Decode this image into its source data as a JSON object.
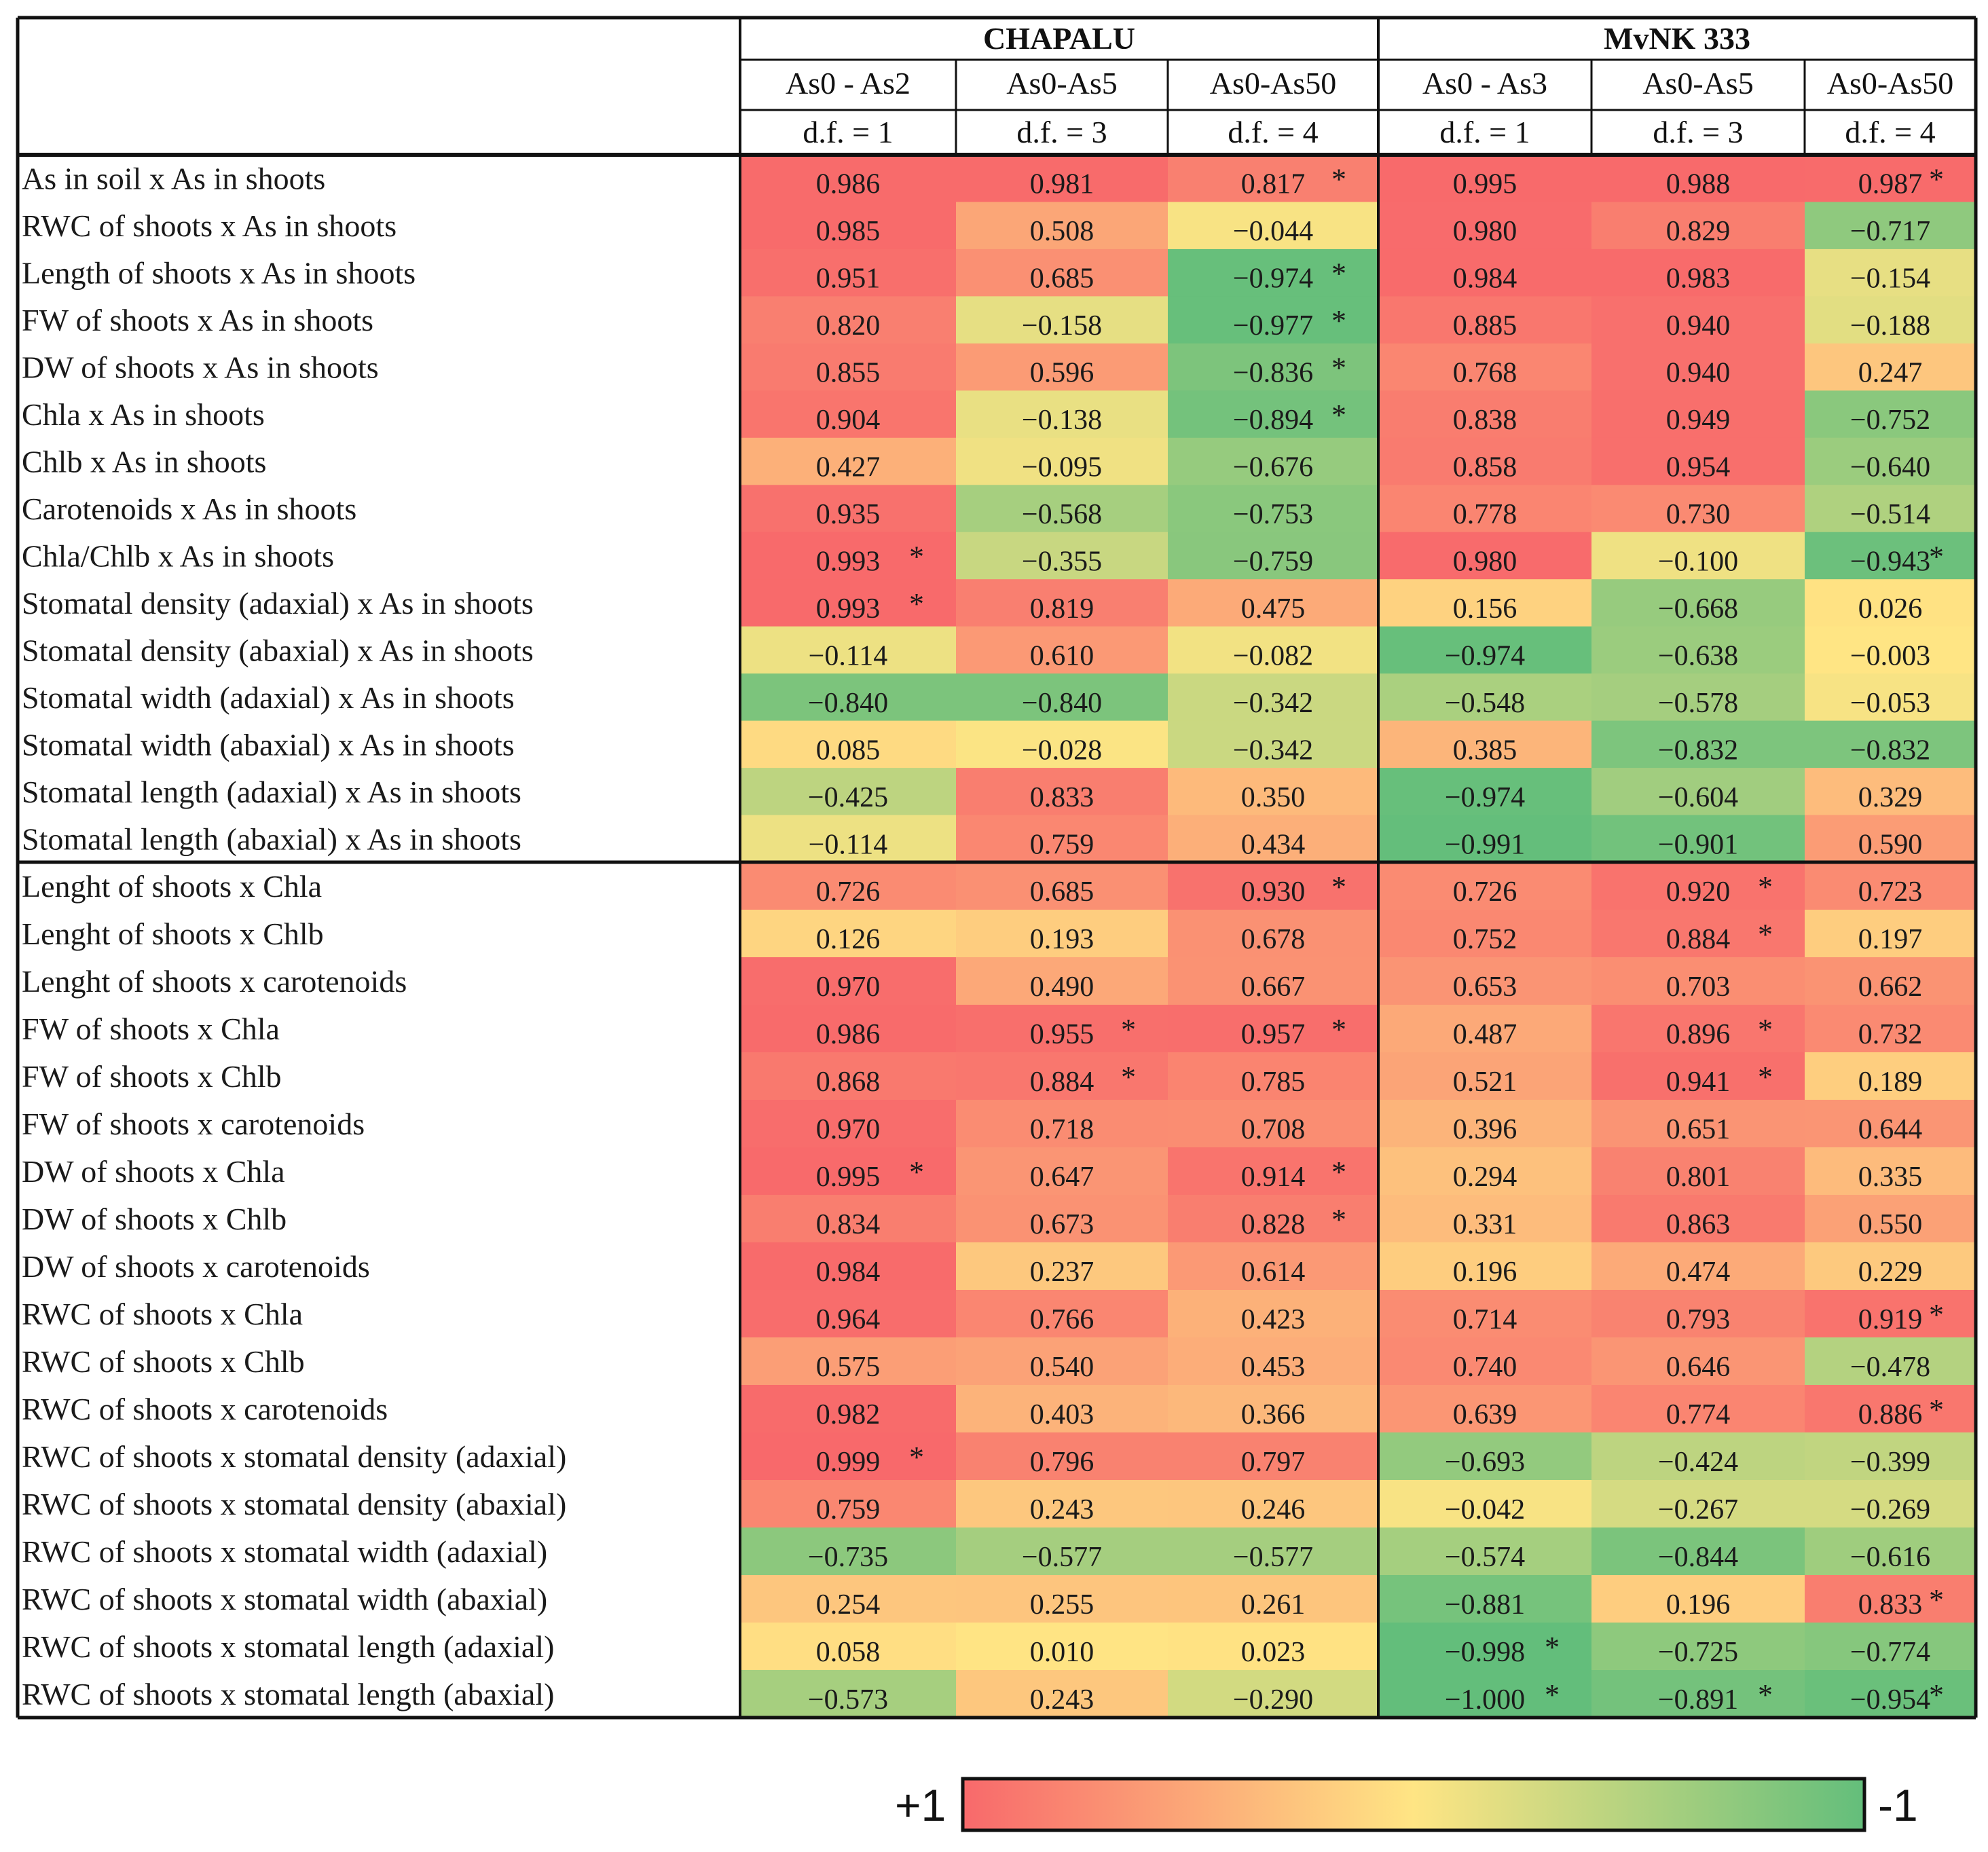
{
  "chart_data": {
    "type": "heatmap",
    "colorscale": {
      "high_color": "#f8696b",
      "mid_color": "#ffe584",
      "low_color": "#63be7b",
      "min": -1,
      "max": 1
    },
    "groups": [
      {
        "name": "CHAPALU",
        "columns": [
          {
            "label": "As0 - As2",
            "df": "d.f. = 1"
          },
          {
            "label": "As0-As5",
            "df": "d.f. = 3"
          },
          {
            "label": "As0-As50",
            "df": "d.f. = 4"
          }
        ]
      },
      {
        "name": "MvNK 333",
        "columns": [
          {
            "label": "As0 - As3",
            "df": "d.f. = 1"
          },
          {
            "label": "As0-As5",
            "df": "d.f. = 3"
          },
          {
            "label": "As0-As50",
            "df": "d.f. = 4"
          }
        ]
      }
    ],
    "significance_marker": "*",
    "sections": [
      {
        "rows": [
          {
            "label": "As in soil x As in shoots",
            "values": [
              0.986,
              0.981,
              0.817,
              0.995,
              0.988,
              0.987
            ],
            "sig": [
              0,
              0,
              1,
              0,
              0,
              1
            ]
          },
          {
            "label": "RWC of shoots x As in shoots",
            "values": [
              0.985,
              0.508,
              -0.044,
              0.98,
              0.829,
              -0.717
            ],
            "sig": [
              0,
              0,
              0,
              0,
              0,
              0
            ]
          },
          {
            "label": "Length of shoots x As in shoots",
            "values": [
              0.951,
              0.685,
              -0.974,
              0.984,
              0.983,
              -0.154
            ],
            "sig": [
              0,
              0,
              1,
              0,
              0,
              0
            ]
          },
          {
            "label": "FW of shoots x As in shoots",
            "values": [
              0.82,
              -0.158,
              -0.977,
              0.885,
              0.94,
              -0.188
            ],
            "sig": [
              0,
              0,
              1,
              0,
              0,
              0
            ]
          },
          {
            "label": "DW of shoots x As in shoots",
            "values": [
              0.855,
              0.596,
              -0.836,
              0.768,
              0.94,
              0.247
            ],
            "sig": [
              0,
              0,
              1,
              0,
              0,
              0
            ]
          },
          {
            "label": "Chla x As in shoots",
            "values": [
              0.904,
              -0.138,
              -0.894,
              0.838,
              0.949,
              -0.752
            ],
            "sig": [
              0,
              0,
              1,
              0,
              0,
              0
            ]
          },
          {
            "label": "Chlb x As in shoots",
            "values": [
              0.427,
              -0.095,
              -0.676,
              0.858,
              0.954,
              -0.64
            ],
            "sig": [
              0,
              0,
              0,
              0,
              0,
              0
            ]
          },
          {
            "label": "Carotenoids x As in shoots",
            "values": [
              0.935,
              -0.568,
              -0.753,
              0.778,
              0.73,
              -0.514
            ],
            "sig": [
              0,
              0,
              0,
              0,
              0,
              0
            ]
          },
          {
            "label": "Chla/Chlb x As in shoots",
            "values": [
              0.993,
              -0.355,
              -0.759,
              0.98,
              -0.1,
              -0.943
            ],
            "sig": [
              1,
              0,
              0,
              0,
              0,
              1
            ]
          },
          {
            "label": "Stomatal density (adaxial) x As in shoots",
            "values": [
              0.993,
              0.819,
              0.475,
              0.156,
              -0.668,
              0.026
            ],
            "sig": [
              1,
              0,
              0,
              0,
              0,
              0
            ]
          },
          {
            "label": "Stomatal density (abaxial) x As in shoots",
            "values": [
              -0.114,
              0.61,
              -0.082,
              -0.974,
              -0.638,
              -0.003
            ],
            "sig": [
              0,
              0,
              0,
              0,
              0,
              0
            ]
          },
          {
            "label": "Stomatal width (adaxial) x As in shoots",
            "values": [
              -0.84,
              -0.84,
              -0.342,
              -0.548,
              -0.578,
              -0.053
            ],
            "sig": [
              0,
              0,
              0,
              0,
              0,
              0
            ]
          },
          {
            "label": "Stomatal width (abaxial) x As in shoots",
            "values": [
              0.085,
              -0.028,
              -0.342,
              0.385,
              -0.832,
              -0.832
            ],
            "sig": [
              0,
              0,
              0,
              0,
              0,
              0
            ]
          },
          {
            "label": "Stomatal length (adaxial) x As in shoots",
            "values": [
              -0.425,
              0.833,
              0.35,
              -0.974,
              -0.604,
              0.329
            ],
            "sig": [
              0,
              0,
              0,
              0,
              0,
              0
            ]
          },
          {
            "label": "Stomatal length (abaxial) x As in shoots",
            "values": [
              -0.114,
              0.759,
              0.434,
              -0.991,
              -0.901,
              0.59
            ],
            "sig": [
              0,
              0,
              0,
              0,
              0,
              0
            ]
          }
        ]
      },
      {
        "rows": [
          {
            "label": "Lenght of shoots x Chla",
            "values": [
              0.726,
              0.685,
              0.93,
              0.726,
              0.92,
              0.723
            ],
            "sig": [
              0,
              0,
              1,
              0,
              1,
              0
            ]
          },
          {
            "label": "Lenght of shoots x Chlb",
            "values": [
              0.126,
              0.193,
              0.678,
              0.752,
              0.884,
              0.197
            ],
            "sig": [
              0,
              0,
              0,
              0,
              1,
              0
            ]
          },
          {
            "label": "Lenght of shoots x carotenoids",
            "values": [
              0.97,
              0.49,
              0.667,
              0.653,
              0.703,
              0.662
            ],
            "sig": [
              0,
              0,
              0,
              0,
              0,
              0
            ]
          },
          {
            "label": "FW of shoots x Chla",
            "values": [
              0.986,
              0.955,
              0.957,
              0.487,
              0.896,
              0.732
            ],
            "sig": [
              0,
              1,
              1,
              0,
              1,
              0
            ]
          },
          {
            "label": "FW of shoots x Chlb",
            "values": [
              0.868,
              0.884,
              0.785,
              0.521,
              0.941,
              0.189
            ],
            "sig": [
              0,
              1,
              0,
              0,
              1,
              0
            ]
          },
          {
            "label": "FW of shoots x carotenoids",
            "values": [
              0.97,
              0.718,
              0.708,
              0.396,
              0.651,
              0.644
            ],
            "sig": [
              0,
              0,
              0,
              0,
              0,
              0
            ]
          },
          {
            "label": "DW of shoots x Chla",
            "values": [
              0.995,
              0.647,
              0.914,
              0.294,
              0.801,
              0.335
            ],
            "sig": [
              1,
              0,
              1,
              0,
              0,
              0
            ]
          },
          {
            "label": "DW of shoots x Chlb",
            "values": [
              0.834,
              0.673,
              0.828,
              0.331,
              0.863,
              0.55
            ],
            "sig": [
              0,
              0,
              1,
              0,
              0,
              0
            ]
          },
          {
            "label": "DW of shoots x carotenoids",
            "values": [
              0.984,
              0.237,
              0.614,
              0.196,
              0.474,
              0.229
            ],
            "sig": [
              0,
              0,
              0,
              0,
              0,
              0
            ]
          },
          {
            "label": "RWC of shoots x Chla",
            "values": [
              0.964,
              0.766,
              0.423,
              0.714,
              0.793,
              0.919
            ],
            "sig": [
              0,
              0,
              0,
              0,
              0,
              1
            ]
          },
          {
            "label": "RWC of shoots x Chlb",
            "values": [
              0.575,
              0.54,
              0.453,
              0.74,
              0.646,
              -0.478
            ],
            "sig": [
              0,
              0,
              0,
              0,
              0,
              0
            ]
          },
          {
            "label": "RWC of shoots x carotenoids",
            "values": [
              0.982,
              0.403,
              0.366,
              0.639,
              0.774,
              0.886
            ],
            "sig": [
              0,
              0,
              0,
              0,
              0,
              1
            ]
          },
          {
            "label": "RWC of shoots x stomatal density (adaxial)",
            "values": [
              0.999,
              0.796,
              0.797,
              -0.693,
              -0.424,
              -0.399
            ],
            "sig": [
              1,
              0,
              0,
              0,
              0,
              0
            ]
          },
          {
            "label": "RWC of shoots x stomatal density (abaxial)",
            "values": [
              0.759,
              0.243,
              0.246,
              -0.042,
              -0.267,
              -0.269
            ],
            "sig": [
              0,
              0,
              0,
              0,
              0,
              0
            ]
          },
          {
            "label": "RWC of shoots x stomatal width (adaxial)",
            "values": [
              -0.735,
              -0.577,
              -0.577,
              -0.574,
              -0.844,
              -0.616
            ],
            "sig": [
              0,
              0,
              0,
              0,
              0,
              0
            ]
          },
          {
            "label": "RWC of shoots x stomatal width (abaxial)",
            "values": [
              0.254,
              0.255,
              0.261,
              -0.881,
              0.196,
              0.833
            ],
            "sig": [
              0,
              0,
              0,
              0,
              0,
              1
            ]
          },
          {
            "label": "RWC of shoots x stomatal length (adaxial)",
            "values": [
              0.058,
              0.01,
              0.023,
              -0.998,
              -0.725,
              -0.774
            ],
            "sig": [
              0,
              0,
              0,
              1,
              0,
              0
            ]
          },
          {
            "label": "RWC of shoots x stomatal length (abaxial)",
            "values": [
              -0.573,
              0.243,
              -0.29,
              -1.0,
              -0.891,
              -0.954
            ],
            "sig": [
              0,
              0,
              0,
              1,
              1,
              1
            ]
          }
        ]
      }
    ],
    "legend": {
      "high_label": "+1",
      "low_label": "-1"
    }
  }
}
